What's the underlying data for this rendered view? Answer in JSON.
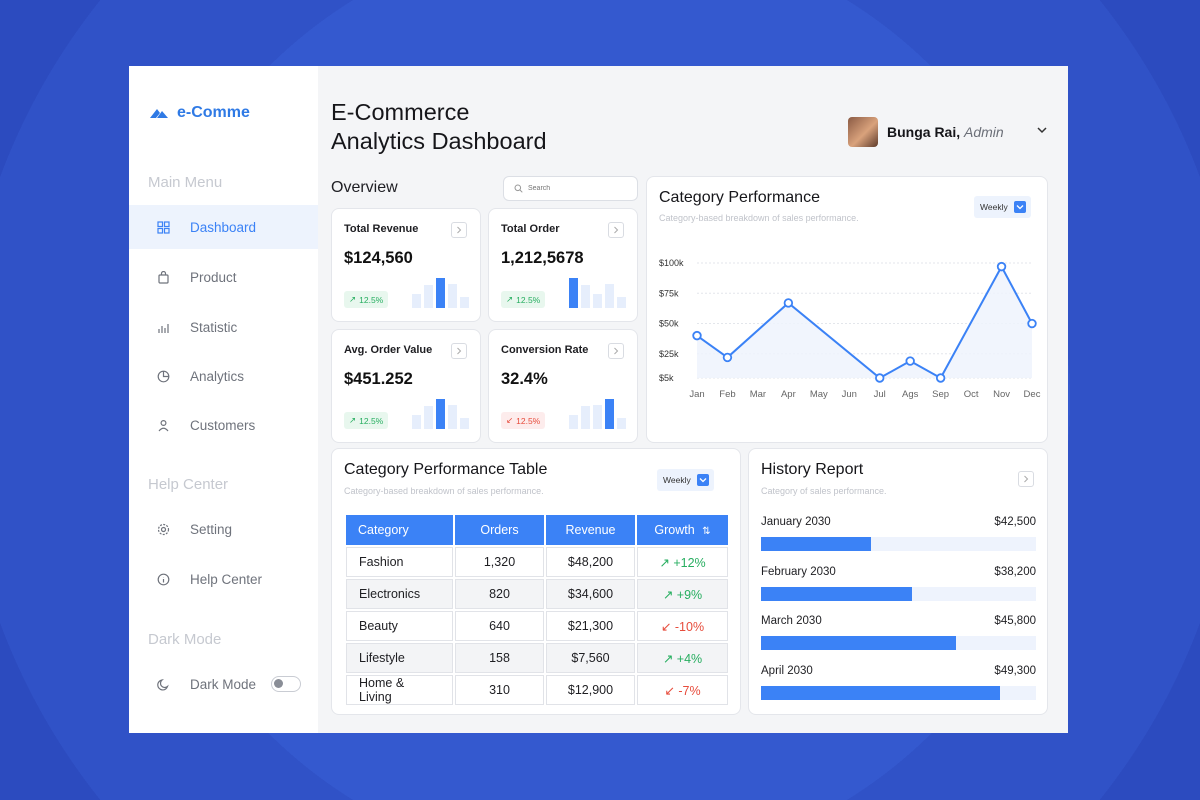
{
  "sidebar": {
    "brand": "e-Comme",
    "sections": {
      "main_menu": "Main Menu",
      "help_center": "Help Center",
      "dark_mode": "Dark Mode"
    },
    "items": [
      {
        "label": "Dashboard",
        "icon": "grid-icon",
        "active": true
      },
      {
        "label": "Product",
        "icon": "bag-icon"
      },
      {
        "label": "Statistic",
        "icon": "bar-chart-icon"
      },
      {
        "label": "Analytics",
        "icon": "pie-chart-icon"
      },
      {
        "label": "Customers",
        "icon": "user-icon"
      },
      {
        "label": "Setting",
        "icon": "gear-icon"
      },
      {
        "label": "Help Center",
        "icon": "info-icon"
      },
      {
        "label": "Dark Mode",
        "icon": "moon-icon",
        "toggle": "off"
      }
    ]
  },
  "header": {
    "title_line1": "E-Commerce",
    "title_line2": "Analytics Dashboard",
    "user_name": "Bunga Rai,",
    "user_role": "Admin"
  },
  "overview": {
    "heading": "Overview",
    "search_placeholder": "Search",
    "stats": [
      {
        "title": "Total Revenue",
        "value": "$124,560",
        "change": "12.5%",
        "trend": "up",
        "bars": [
          0.45,
          0.75,
          1.0,
          0.8,
          0.35
        ],
        "highlight": 2
      },
      {
        "title": "Total Order",
        "value": "1,212,5678",
        "change": "12.5%",
        "trend": "up",
        "bars": [
          1.0,
          0.75,
          0.45,
          0.8,
          0.35
        ],
        "highlight": 0
      },
      {
        "title": "Avg. Order Value",
        "value": "$451.252",
        "change": "12.5%",
        "trend": "up",
        "bars": [
          0.45,
          0.75,
          1.0,
          0.8,
          0.35
        ],
        "highlight": 2
      },
      {
        "title": "Conversion Rate",
        "value": "32.4%",
        "change": "12.5%",
        "trend": "down",
        "bars": [
          0.45,
          0.75,
          0.8,
          1.0,
          0.35
        ],
        "highlight": 3
      }
    ]
  },
  "category_performance": {
    "title": "Category Performance",
    "subtitle": "Category-based breakdown of sales performance.",
    "period": "Weekly"
  },
  "chart_data": {
    "type": "line",
    "categories": [
      "Jan",
      "Feb",
      "Mar",
      "Apr",
      "May",
      "Jun",
      "Jul",
      "Ags",
      "Sep",
      "Oct",
      "Nov",
      "Dec"
    ],
    "series": [
      {
        "values": [
          40000,
          22000,
          null,
          67000,
          null,
          null,
          5000,
          19000,
          5000,
          null,
          97000,
          50000
        ]
      }
    ],
    "yticks": [
      "$100k",
      "$75k",
      "$50k",
      "$25k",
      "$5k"
    ],
    "ytick_values": [
      100000,
      75000,
      50000,
      25000,
      5000
    ],
    "ylim": [
      5000,
      100000
    ],
    "grid": true,
    "color": "#3b82f6"
  },
  "table": {
    "title": "Category Performance Table",
    "subtitle": "Category-based breakdown of sales performance.",
    "period": "Weekly",
    "headers": [
      "Category",
      "Orders",
      "Revenue",
      "Growth"
    ],
    "rows": [
      {
        "category": "Fashion",
        "orders": "1,320",
        "revenue": "$48,200",
        "growth": "+12%",
        "trend": "up"
      },
      {
        "category": "Electronics",
        "orders": "820",
        "revenue": "$34,600",
        "growth": "+9%",
        "trend": "up"
      },
      {
        "category": "Beauty",
        "orders": "640",
        "revenue": "$21,300",
        "growth": "-10%",
        "trend": "down"
      },
      {
        "category": "Lifestyle",
        "orders": "158",
        "revenue": "$7,560",
        "growth": "+4%",
        "trend": "up"
      },
      {
        "category": "Home & Living",
        "orders": "310",
        "revenue": "$12,900",
        "growth": "-7%",
        "trend": "down"
      }
    ]
  },
  "history": {
    "title": "History Report",
    "subtitle": "Category of sales performance.",
    "rows": [
      {
        "label": "January 2030",
        "value": "$42,500",
        "fill": 0.4
      },
      {
        "label": "February 2030",
        "value": "$38,200",
        "fill": 0.55
      },
      {
        "label": "March 2030",
        "value": "$45,800",
        "fill": 0.71
      },
      {
        "label": "April 2030",
        "value": "$49,300",
        "fill": 0.87
      }
    ]
  },
  "colors": {
    "accent": "#3b82f6",
    "up": "#27ae60",
    "down": "#e74c3c",
    "background": "#3459cf"
  }
}
